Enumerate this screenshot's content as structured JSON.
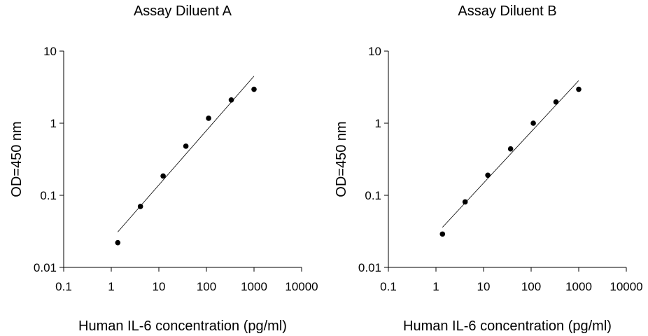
{
  "chart_data": [
    {
      "type": "scatter",
      "title": "Assay Diluent A",
      "xlabel": "Human IL-6 concentration (pg/ml)",
      "ylabel": "OD=450 nm",
      "xscale": "log",
      "yscale": "log",
      "xlim": [
        0.1,
        10000
      ],
      "ylim": [
        0.01,
        10
      ],
      "xticks": [
        "0.1",
        "1",
        "10",
        "100",
        "1000",
        "10000"
      ],
      "yticks": [
        "0.01",
        "0.1",
        "1",
        "10"
      ],
      "grid": false,
      "points": [
        {
          "x": 1.37,
          "y": 0.022
        },
        {
          "x": 4.1,
          "y": 0.07
        },
        {
          "x": 12.3,
          "y": 0.185
        },
        {
          "x": 37,
          "y": 0.48
        },
        {
          "x": 111,
          "y": 1.17
        },
        {
          "x": 333,
          "y": 2.1
        },
        {
          "x": 1000,
          "y": 2.95
        }
      ],
      "fit_line": {
        "x": [
          1.37,
          1000
        ],
        "y": [
          0.031,
          4.5
        ]
      }
    },
    {
      "type": "scatter",
      "title": "Assay Diluent B",
      "xlabel": "Human IL-6 concentration (pg/ml)",
      "ylabel": "OD=450 nm",
      "xscale": "log",
      "yscale": "log",
      "xlim": [
        0.1,
        10000
      ],
      "ylim": [
        0.01,
        10
      ],
      "xticks": [
        "0.1",
        "1",
        "10",
        "100",
        "1000",
        "10000"
      ],
      "yticks": [
        "0.01",
        "0.1",
        "1",
        "10"
      ],
      "grid": false,
      "points": [
        {
          "x": 1.37,
          "y": 0.029
        },
        {
          "x": 4.1,
          "y": 0.081
        },
        {
          "x": 12.3,
          "y": 0.19
        },
        {
          "x": 37,
          "y": 0.44
        },
        {
          "x": 111,
          "y": 1.0
        },
        {
          "x": 333,
          "y": 1.97
        },
        {
          "x": 1000,
          "y": 2.95
        }
      ],
      "fit_line": {
        "x": [
          1.37,
          1000
        ],
        "y": [
          0.036,
          3.9
        ]
      }
    }
  ]
}
